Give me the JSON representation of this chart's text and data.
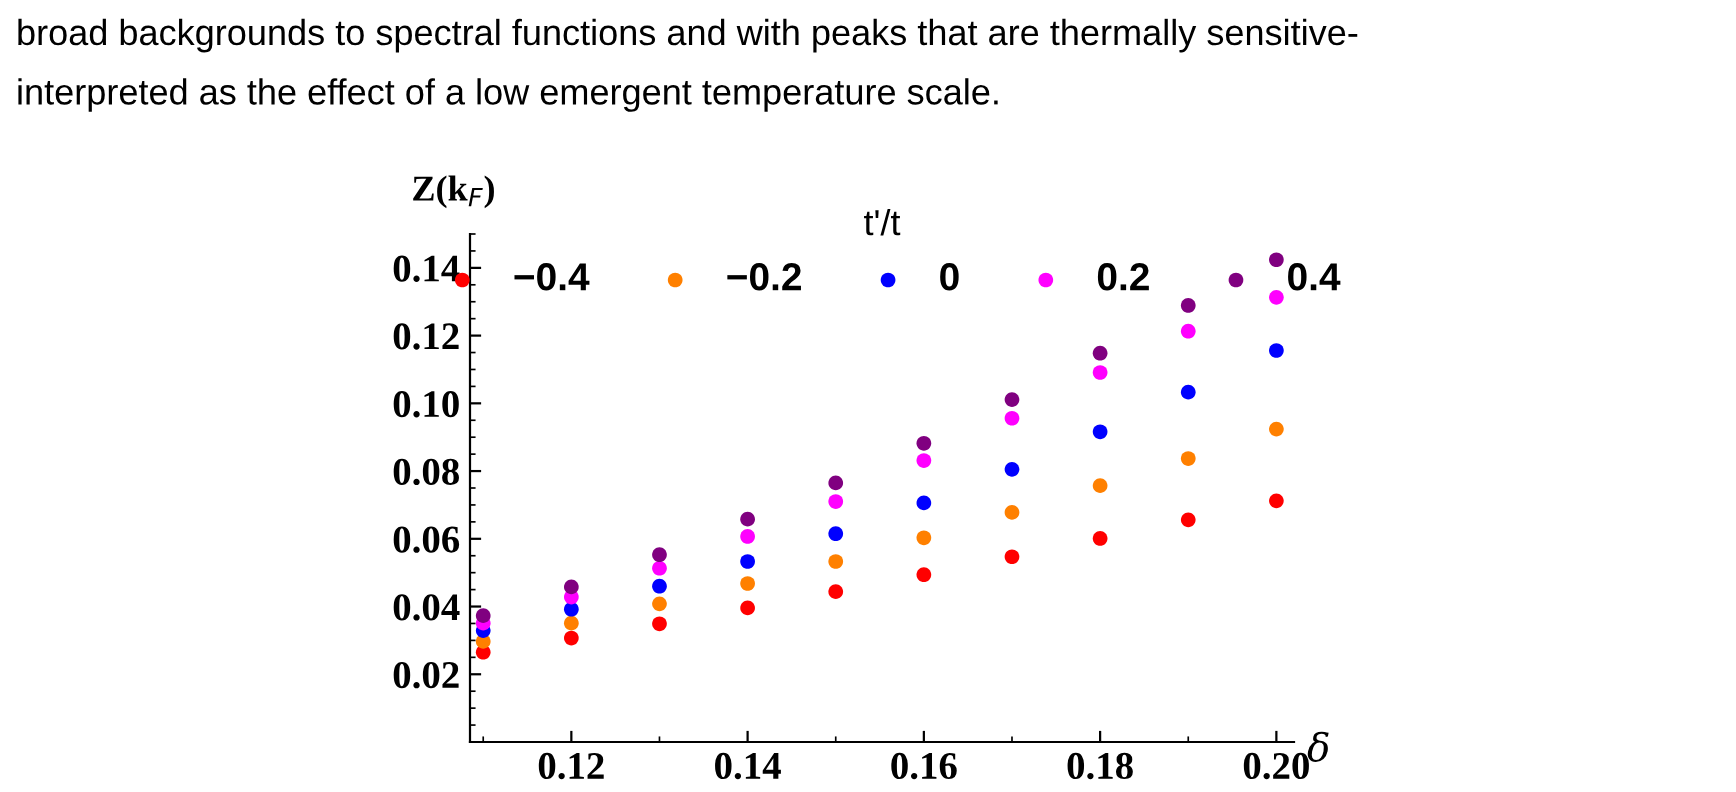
{
  "chart_data": {
    "type": "scatter",
    "annotations": [
      "broad backgrounds to spectral functions and with peaks that are thermally sensitive-",
      "interpreted as the effect of a low emergent temperature scale."
    ],
    "ylabel": "Z(k$_{F}$)",
    "xlabel": "δ",
    "legend_title": "t'/t",
    "x": [
      0.11,
      0.12,
      0.13,
      0.14,
      0.15,
      0.16,
      0.17,
      0.18,
      0.19,
      0.2
    ],
    "series": [
      {
        "name": "−0.4",
        "color": "#ff0000",
        "values": [
          0.0265,
          0.0307,
          0.0349,
          0.0396,
          0.0444,
          0.0494,
          0.0547,
          0.0601,
          0.0656,
          0.0712
        ]
      },
      {
        "name": "−0.2",
        "color": "#ff8000",
        "values": [
          0.0297,
          0.0351,
          0.0408,
          0.0468,
          0.0533,
          0.0603,
          0.0678,
          0.0757,
          0.0837,
          0.0924
        ]
      },
      {
        "name": "0",
        "color": "#0000ff",
        "values": [
          0.0329,
          0.0392,
          0.046,
          0.0533,
          0.0615,
          0.0706,
          0.0805,
          0.0916,
          0.1033,
          0.1156
        ]
      },
      {
        "name": "0.2",
        "color": "#ff00ff",
        "values": [
          0.0351,
          0.0428,
          0.0513,
          0.0607,
          0.071,
          0.0831,
          0.0956,
          0.1091,
          0.1213,
          0.1313
        ]
      },
      {
        "name": "0.4",
        "color": "#800080",
        "values": [
          0.0373,
          0.0458,
          0.0553,
          0.0658,
          0.0765,
          0.0882,
          0.1011,
          0.1148,
          0.1289,
          0.1424
        ]
      }
    ],
    "xlim": [
      0.1085,
      0.202
    ],
    "ylim": [
      0,
      0.15
    ],
    "xticks": [
      {
        "value": 0.12,
        "label": "0.12"
      },
      {
        "value": 0.14,
        "label": "0.14"
      },
      {
        "value": 0.16,
        "label": "0.16"
      },
      {
        "value": 0.18,
        "label": "0.18"
      },
      {
        "value": 0.2,
        "label": "0.20"
      }
    ],
    "yticks": [
      {
        "value": 0.02,
        "label": "0.02"
      },
      {
        "value": 0.04,
        "label": "0.04"
      },
      {
        "value": 0.06,
        "label": "0.06"
      },
      {
        "value": 0.08,
        "label": "0.08"
      },
      {
        "value": 0.1,
        "label": "0.10"
      },
      {
        "value": 0.12,
        "label": "0.12"
      },
      {
        "value": 0.14,
        "label": "0.14"
      }
    ],
    "grid": false,
    "legend": "top",
    "marker": "circle"
  }
}
